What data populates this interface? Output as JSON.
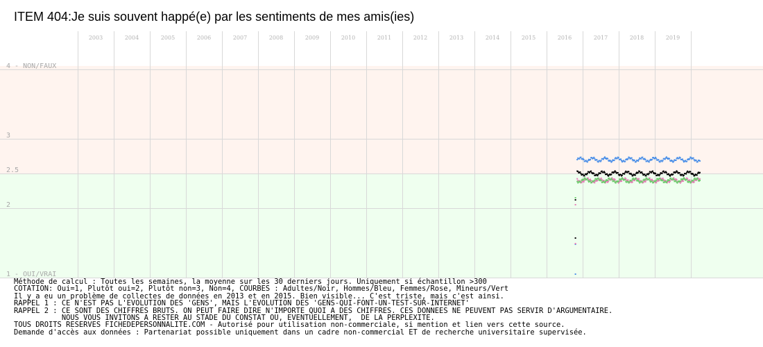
{
  "chart_data": {
    "type": "scatter",
    "title": "ITEM 404:Je suis souvent happé(e) par les sentiments de mes amis(ies)",
    "x_tick_labels": [
      "2003",
      "2004",
      "2005",
      "2006",
      "2007",
      "2008",
      "2009",
      "2010",
      "2011",
      "2012",
      "2013",
      "2014",
      "2015",
      "2016",
      "2017",
      "2018",
      "2019"
    ],
    "xlim": [
      2002.5,
      2020.5
    ],
    "ylim": [
      1,
      4.05
    ],
    "y_tick_labels": [
      {
        "value": 4,
        "label": "4 - NON/FAUX"
      },
      {
        "value": 3,
        "label": "3"
      },
      {
        "value": 2.5,
        "label": "2.5"
      },
      {
        "value": 2,
        "label": "2"
      },
      {
        "value": 1,
        "label": "1 - OUI/VRAI"
      }
    ],
    "grid": true,
    "background_bands": [
      {
        "from": 2.5,
        "to": 4.05,
        "color": "#fff4ef"
      },
      {
        "from": 1,
        "to": 2.5,
        "color": "#efffef"
      }
    ],
    "series": [
      {
        "key": "blue",
        "color": "#4a8fe8",
        "base": 2.7,
        "amp": 0.025
      },
      {
        "key": "black",
        "color": "#000000",
        "base": 2.5,
        "amp": 0.025
      },
      {
        "key": "pink",
        "color": "#e87ab8",
        "base": 2.4,
        "amp": 0.025
      },
      {
        "key": "green",
        "color": "#6ccc6c",
        "base": 2.4,
        "amp": 0.025
      }
    ],
    "x_range_data": [
      2016.3,
      2019.75
    ],
    "initial_points": [
      {
        "x": 2016.3,
        "y": 1.05,
        "color": "#4a8fe8"
      },
      {
        "x": 2016.3,
        "y": 1.48,
        "color": "#4a8fe8"
      },
      {
        "x": 2016.3,
        "y": 1.57,
        "color": "#000000"
      },
      {
        "x": 2016.3,
        "y": 1.49,
        "color": "#e87ab8"
      },
      {
        "x": 2016.3,
        "y": 2.12,
        "color": "#000000"
      },
      {
        "x": 2016.3,
        "y": 2.05,
        "color": "#e87ab8"
      },
      {
        "x": 2016.3,
        "y": 2.15,
        "color": "#6ccc6c"
      }
    ]
  },
  "notes": [
    "Méthode de calcul : Toutes les semaines, la moyenne sur les 30 derniers jours. Uniquement si échantillon >300",
    "COTATION: Oui=1, Plutôt oui=2, Plutôt non=3, Non=4, COURBES : Adultes/Noir, Hommes/Bleu, Femmes/Rose, Mineurs/Vert",
    "Il y a eu un problème de collectes de données en 2013 et en 2015. Bien visible... C'est triste, mais c'est ainsi.",
    "RAPPEL 1 : CE N'EST PAS L'EVOLUTION DES 'GENS', MAIS L'EVOLUTION DES 'GENS-QUI-FONT-UN-TEST-SUR-INTERNET'",
    "RAPPEL 2 : CE SONT DES CHIFFRES BRUTS. ON PEUT FAIRE DIRE N'IMPORTE QUOI A DES CHIFFRES. CES DONNEES NE PEUVENT PAS SERVIR D'ARGUMENTAIRE.",
    "           NOUS VOUS INVITONS A RESTER AU STADE DU CONSTAT OU, EVENTUELLEMENT,  DE LA PERPLEXITE.",
    "TOUS DROITS RESERVES FICHEDEPERSONNALITE.COM - Autorisé pour utilisation non-commerciale, si mention et lien vers cette source.",
    "Demande d'accès aux données : Partenariat possible uniquement dans un cadre non-commercial ET de recherche universitaire supervisée."
  ]
}
